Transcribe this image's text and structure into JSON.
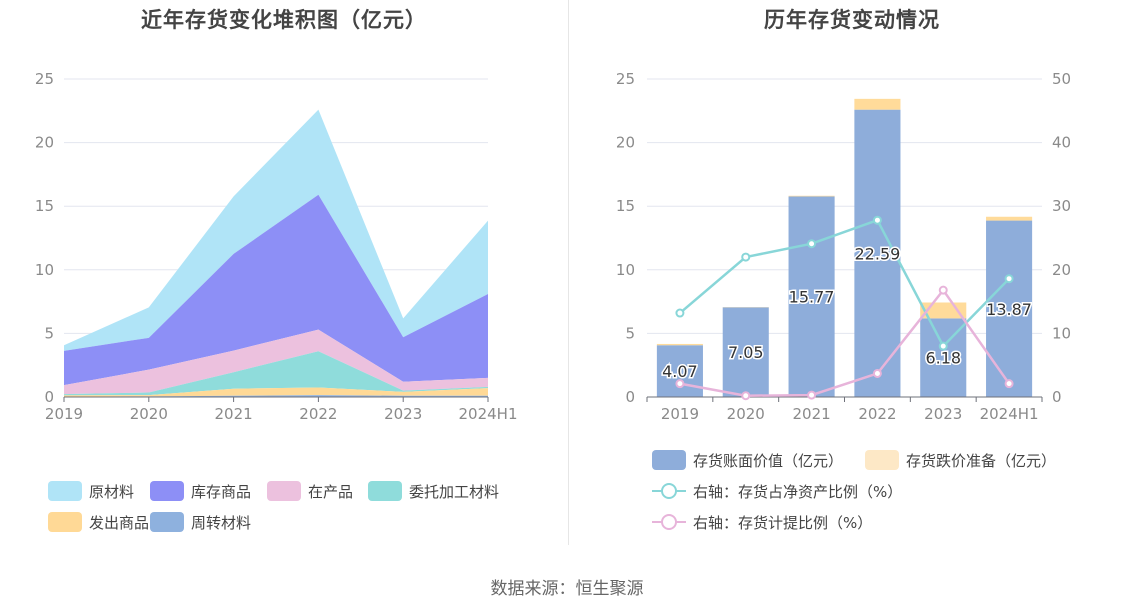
{
  "footer": {
    "source": "数据来源：恒生聚源"
  },
  "chart_data": [
    {
      "type": "area",
      "stacked": true,
      "title": "近年存货变化堆积图（亿元）",
      "x": [
        "2019",
        "2020",
        "2021",
        "2022",
        "2023",
        "2024H1"
      ],
      "ylim": [
        0,
        25
      ],
      "yticks": [
        0,
        5,
        10,
        15,
        20,
        25
      ],
      "grid": true,
      "legend_position": "bottom",
      "series": [
        {
          "name": "周转材料",
          "color": "#8eb1de",
          "values": [
            0.03,
            0.05,
            0.1,
            0.15,
            0.1,
            0.1
          ]
        },
        {
          "name": "发出商品",
          "color": "#ffd996",
          "values": [
            0.1,
            0.1,
            0.55,
            0.6,
            0.3,
            0.6
          ]
        },
        {
          "name": "委托加工材料",
          "color": "#8fdcdb",
          "values": [
            0.1,
            0.2,
            1.3,
            2.85,
            0.1,
            0.1
          ]
        },
        {
          "name": "在产品",
          "color": "#ecc1de",
          "values": [
            0.7,
            1.8,
            1.7,
            1.7,
            0.7,
            0.7
          ]
        },
        {
          "name": "库存商品",
          "color": "#8d8ff6",
          "values": [
            2.7,
            2.5,
            7.6,
            10.6,
            3.5,
            6.6
          ]
        },
        {
          "name": "原材料",
          "color": "#b0e4f7",
          "values": [
            0.44,
            2.4,
            4.52,
            6.69,
            1.48,
            5.77
          ]
        }
      ],
      "legend_order": [
        "原材料",
        "库存商品",
        "在产品",
        "委托加工材料",
        "发出商品",
        "周转材料"
      ]
    },
    {
      "type": "bar",
      "title": "历年存货变动情况",
      "x": [
        "2019",
        "2020",
        "2021",
        "2022",
        "2023",
        "2024H1"
      ],
      "ylim": [
        0,
        25
      ],
      "yticks": [
        0,
        5,
        10,
        15,
        20,
        25
      ],
      "y2lim": [
        0,
        50
      ],
      "y2ticks": [
        0,
        10,
        20,
        30,
        40,
        50
      ],
      "grid": true,
      "legend_position": "bottom",
      "bars": [
        {
          "name": "存货账面价值（亿元）",
          "color": "#8eadda",
          "values": [
            4.07,
            7.05,
            15.77,
            22.59,
            6.18,
            13.87
          ]
        },
        {
          "name": "存货跌价准备（亿元）",
          "color": "#ffdb9a",
          "values": [
            0.1,
            0.02,
            0.05,
            0.85,
            1.25,
            0.3
          ]
        }
      ],
      "data_labels": [
        "4.07",
        "7.05",
        "15.77",
        "22.59",
        "6.18",
        "13.87"
      ],
      "lines": [
        {
          "name": "右轴：存货占净资产比例（%）",
          "color": "#88d6d8",
          "axis": "right",
          "values": [
            13.2,
            22.0,
            24.1,
            27.8,
            8.0,
            18.6
          ]
        },
        {
          "name": "右轴：存货计提比例（%）",
          "color": "#e7b4da",
          "axis": "right",
          "values": [
            2.1,
            0.2,
            0.3,
            3.7,
            16.8,
            2.1
          ]
        }
      ]
    }
  ]
}
